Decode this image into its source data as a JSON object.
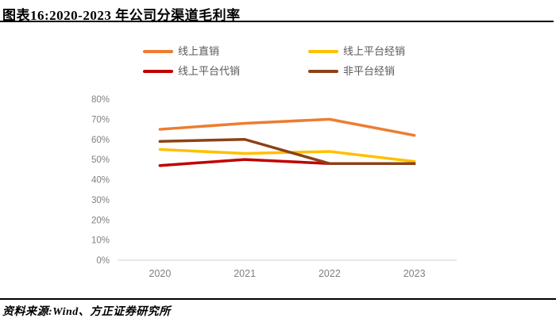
{
  "figure": {
    "title": "图表16:2020-2023 年公司分渠道毛利率",
    "source_label": "资料来源:Wind、方正证券研究所"
  },
  "chart_data": {
    "type": "line",
    "title": "图表16:2020-2023 年公司分渠道毛利率",
    "categories": [
      "2020",
      "2021",
      "2022",
      "2023"
    ],
    "series": [
      {
        "name": "线上直销",
        "color": "#ED7D31",
        "values": [
          65,
          68,
          70,
          62
        ]
      },
      {
        "name": "线上平台经销",
        "color": "#FFC000",
        "values": [
          55,
          53,
          54,
          49
        ]
      },
      {
        "name": "线上平台代销",
        "color": "#C00000",
        "values": [
          47,
          50,
          48,
          48
        ]
      },
      {
        "name": "非平台经销",
        "color": "#8C4217",
        "values": [
          59,
          60,
          48,
          48
        ]
      }
    ],
    "xlabel": "",
    "ylabel": "",
    "ylim": [
      0,
      80
    ],
    "y_tick_step": 10,
    "y_tick_labels": [
      "0%",
      "10%",
      "20%",
      "30%",
      "40%",
      "50%",
      "60%",
      "70%",
      "80%"
    ],
    "grid": false,
    "legend_position": "top",
    "axis_line_color": "#D9D9D9",
    "tick_label_color": "#808080"
  }
}
